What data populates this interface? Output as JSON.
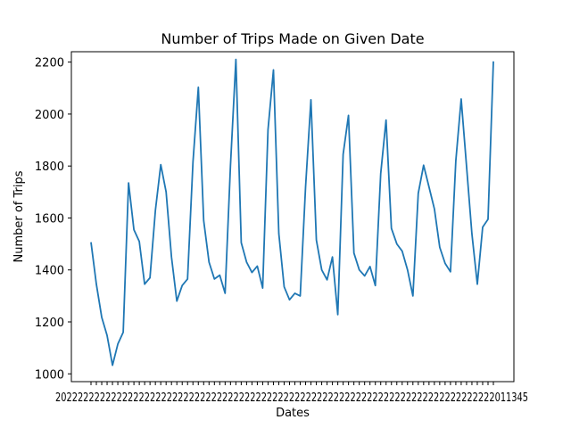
{
  "chart_data": {
    "type": "line",
    "title": "Number of Trips Made on Given Date",
    "xlabel": "Dates",
    "ylabel": "Number of Trips",
    "ylim": [
      970,
      2240
    ],
    "yticks": [
      1000,
      1200,
      1400,
      1600,
      1800,
      2000,
      2200
    ],
    "grid": false,
    "legend": "none",
    "line_color": "#1f77b4",
    "x_tick_text": "2022222222222222222222222222222222222222222222222222222222222222222222222222222011345",
    "series": [
      {
        "values": [
          1507,
          1345,
          1218,
          1148,
          1033,
          1115,
          1160,
          1735,
          1555,
          1510,
          1345,
          1370,
          1630,
          1805,
          1700,
          1450,
          1280,
          1340,
          1365,
          1815,
          2103,
          1590,
          1430,
          1365,
          1380,
          1310,
          1800,
          2210,
          1505,
          1430,
          1390,
          1415,
          1330,
          1940,
          2170,
          1540,
          1335,
          1285,
          1310,
          1300,
          1720,
          2055,
          1515,
          1400,
          1362,
          1450,
          1228,
          1845,
          1995,
          1465,
          1400,
          1377,
          1413,
          1340,
          1770,
          1977,
          1560,
          1500,
          1472,
          1400,
          1300,
          1695,
          1803,
          1720,
          1635,
          1487,
          1425,
          1393,
          1820,
          2058,
          1800,
          1540,
          1345,
          1565,
          1595,
          2203
        ]
      }
    ]
  }
}
